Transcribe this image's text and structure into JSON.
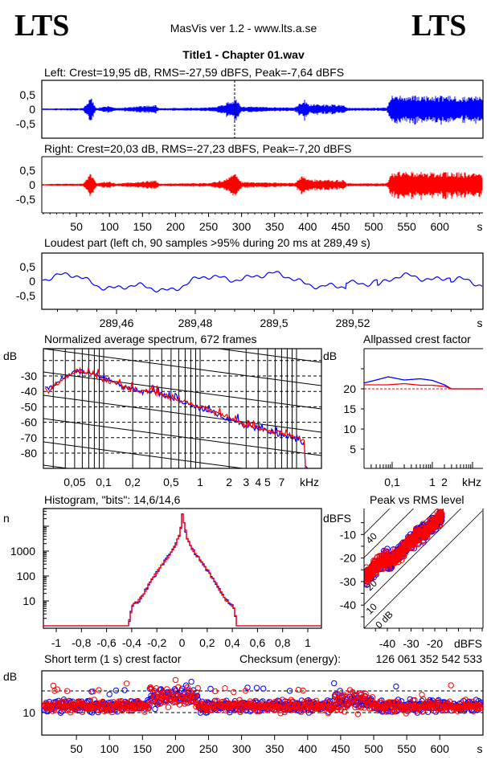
{
  "header": {
    "logo_left": "LTS",
    "logo_right": "LTS",
    "app": "MasVis ver 1.2 - www.lts.a.se",
    "file_title": "Title1 - Chapter 01.wav"
  },
  "colors": {
    "left": "#0000ff",
    "right": "#ff0000"
  },
  "chart_data": [
    {
      "id": "left-waveform",
      "type": "line",
      "title": "Left: Crest=19,95 dB, RMS=-27,59 dBFS, Peak=-7,64 dBFS",
      "ylim": [
        -1,
        1
      ],
      "yticks": [
        "0,5",
        "0",
        "-0,5"
      ],
      "ytick_values": [
        0.5,
        0,
        -0.5
      ],
      "xlim": [
        0,
        665
      ],
      "marker_time": 289.49,
      "envelope": [
        [
          0,
          0.03
        ],
        [
          60,
          0.04
        ],
        [
          68,
          0.3
        ],
        [
          72,
          0.42
        ],
        [
          80,
          0.05
        ],
        [
          100,
          0.12
        ],
        [
          110,
          0.04
        ],
        [
          170,
          0.15
        ],
        [
          175,
          0.04
        ],
        [
          250,
          0.06
        ],
        [
          270,
          0.15
        ],
        [
          290,
          0.38
        ],
        [
          300,
          0.1
        ],
        [
          380,
          0.06
        ],
        [
          395,
          0.35
        ],
        [
          400,
          0.18
        ],
        [
          455,
          0.16
        ],
        [
          460,
          0.05
        ],
        [
          520,
          0.06
        ],
        [
          527,
          0.48
        ],
        [
          665,
          0.45
        ]
      ]
    },
    {
      "id": "right-waveform",
      "type": "line",
      "title": "Right: Crest=20,03 dB, RMS=-27,23 dBFS, Peak=-7,20 dBFS",
      "ylim": [
        -1,
        1
      ],
      "yticks": [
        "0,5",
        "0",
        "-0,5"
      ],
      "ytick_values": [
        0.5,
        0,
        -0.5
      ],
      "xlim": [
        0,
        665
      ],
      "xticks": [
        "50",
        "100",
        "150",
        "200",
        "250",
        "300",
        "350",
        "400",
        "450",
        "500",
        "550",
        "600"
      ],
      "xtick_values": [
        50,
        100,
        150,
        200,
        250,
        300,
        350,
        400,
        450,
        500,
        550,
        600
      ],
      "xunit": "s"
    },
    {
      "id": "loudest-part",
      "type": "line",
      "title": "Loudest part (left  ch, 90 samples >95% during 20 ms at 289,49 s)",
      "ylim": [
        -1,
        1
      ],
      "yticks": [
        "0,5",
        "0",
        "-0,5"
      ],
      "ytick_values": [
        0.5,
        0,
        -0.5
      ],
      "xlim": [
        289.441,
        289.5525
      ],
      "xticks": [
        "289,46",
        "289,48",
        "289,5",
        "289,52"
      ],
      "xtick_values": [
        289.46,
        289.48,
        289.5,
        289.52
      ],
      "xunit": "s"
    },
    {
      "id": "spectrum",
      "type": "line",
      "title": "Normalized average spectrum, 672 frames",
      "ylabel": "dB",
      "yticks": [
        "-30",
        "-40",
        "-50",
        "-60",
        "-70",
        "-80"
      ],
      "ytick_values": [
        -30,
        -40,
        -50,
        -60,
        -70,
        -80
      ],
      "ylim": [
        -95,
        -15
      ],
      "xscale": "log",
      "xlim_khz": [
        0.0237,
        18
      ],
      "xticks": [
        "0,05",
        "0,1",
        "0,2",
        "0,5",
        "1",
        "2",
        "3",
        "4",
        "5",
        "7"
      ],
      "xtick_values": [
        0.05,
        0.1,
        0.2,
        0.5,
        1,
        2,
        3,
        4,
        5,
        7
      ],
      "xunit": "kHz",
      "series": [
        {
          "name": "left",
          "points": [
            [
              0.024,
              -37
            ],
            [
              0.028,
              -38
            ],
            [
              0.032,
              -34
            ],
            [
              0.036,
              -33
            ],
            [
              0.042,
              -30
            ],
            [
              0.05,
              -27
            ],
            [
              0.06,
              -27
            ],
            [
              0.07,
              -28
            ],
            [
              0.08,
              -29
            ],
            [
              0.1,
              -32
            ],
            [
              0.13,
              -34
            ],
            [
              0.16,
              -37
            ],
            [
              0.2,
              -39
            ],
            [
              0.25,
              -40
            ],
            [
              0.3,
              -40
            ],
            [
              0.4,
              -42
            ],
            [
              0.5,
              -45
            ],
            [
              0.7,
              -48
            ],
            [
              1,
              -51
            ],
            [
              1.5,
              -55
            ],
            [
              2,
              -58
            ],
            [
              3,
              -62
            ],
            [
              4,
              -64
            ],
            [
              5,
              -66
            ],
            [
              7,
              -68
            ],
            [
              10,
              -72
            ],
            [
              12,
              -74
            ],
            [
              12.3,
              -88
            ]
          ]
        },
        {
          "name": "right",
          "points": [
            [
              0.024,
              -38
            ],
            [
              0.028,
              -39
            ],
            [
              0.032,
              -35
            ],
            [
              0.036,
              -33
            ],
            [
              0.042,
              -30
            ],
            [
              0.05,
              -27
            ],
            [
              0.06,
              -27
            ],
            [
              0.07,
              -28
            ],
            [
              0.08,
              -29
            ],
            [
              0.1,
              -32
            ],
            [
              0.13,
              -34
            ],
            [
              0.16,
              -37
            ],
            [
              0.2,
              -39
            ],
            [
              0.25,
              -40
            ],
            [
              0.3,
              -40
            ],
            [
              0.4,
              -42
            ],
            [
              0.5,
              -44
            ],
            [
              0.7,
              -47
            ],
            [
              1,
              -50
            ],
            [
              1.5,
              -54
            ],
            [
              2,
              -57
            ],
            [
              3,
              -62
            ],
            [
              4,
              -64
            ],
            [
              5,
              -65
            ],
            [
              7,
              -67
            ],
            [
              10,
              -70
            ],
            [
              12,
              -72
            ],
            [
              12.3,
              -90
            ]
          ]
        }
      ]
    },
    {
      "id": "allpassed-crest",
      "type": "line",
      "title": "Allpassed crest factor",
      "ylabel": "dB",
      "yticks": [
        "20",
        "15",
        "10",
        "5"
      ],
      "ytick_values": [
        20,
        15,
        10,
        5
      ],
      "ylim": [
        0,
        30
      ],
      "reference_db": 20,
      "xscale": "log",
      "xlim_khz": [
        0.021,
        20
      ],
      "xticks": [
        "0,1",
        "1",
        "2"
      ],
      "xtick_values": [
        0.1,
        1,
        2
      ],
      "xunit": "kHz",
      "series": [
        {
          "name": "left",
          "points": [
            [
              0.021,
              21.5
            ],
            [
              0.04,
              22.2
            ],
            [
              0.08,
              23
            ],
            [
              0.2,
              22.2
            ],
            [
              0.5,
              22.5
            ],
            [
              1,
              22.1
            ],
            [
              2,
              21
            ],
            [
              3,
              20
            ],
            [
              6,
              20
            ],
            [
              20,
              20
            ]
          ]
        },
        {
          "name": "right",
          "points": [
            [
              0.021,
              21
            ],
            [
              0.08,
              21
            ],
            [
              0.2,
              21.3
            ],
            [
              0.5,
              20.9
            ],
            [
              1,
              20.9
            ],
            [
              2,
              20.6
            ],
            [
              3,
              20
            ],
            [
              6,
              20
            ],
            [
              20,
              20
            ]
          ]
        }
      ]
    },
    {
      "id": "histogram",
      "type": "line",
      "title": "Histogram, \"bits\": 14,6/14,6",
      "ylabel": "n",
      "yscale": "log",
      "yticks": [
        "1000",
        "100",
        "10"
      ],
      "ytick_values": [
        1000,
        100,
        10
      ],
      "xlim": [
        -1.1,
        1.1
      ],
      "xticks": [
        "-1",
        "-0,8",
        "-0,6",
        "-0,4",
        "-0,2",
        "0",
        "0,2",
        "0,4",
        "0,6",
        "0,8",
        "1"
      ],
      "xtick_values": [
        -1,
        -0.8,
        -0.6,
        -0.4,
        -0.2,
        0,
        0.2,
        0.4,
        0.6,
        0.8,
        1
      ],
      "log10_count_profile": [
        [
          0,
          4.7
        ],
        [
          0.01,
          4.1
        ],
        [
          0.03,
          3.6
        ],
        [
          0.06,
          3.2
        ],
        [
          0.1,
          2.9
        ],
        [
          0.2,
          2.2
        ],
        [
          0.3,
          1.4
        ],
        [
          0.35,
          1.0
        ],
        [
          0.4,
          0.8
        ],
        [
          0.42,
          0.4
        ],
        [
          0.43,
          0
        ]
      ]
    },
    {
      "id": "peak-vs-rms",
      "type": "scatter",
      "title": "Peak vs RMS level",
      "ylabel": "dBFS",
      "xlabel": "dBFS",
      "yticks": [
        "-10",
        "-20",
        "-30",
        "-40"
      ],
      "ytick_values": [
        -10,
        -20,
        -30,
        -40
      ],
      "xticks": [
        "-40",
        "-30",
        "-20"
      ],
      "xtick_values": [
        -40,
        -30,
        -20
      ],
      "xlim": [
        -49.3,
        -0.3
      ],
      "ylim": [
        -49,
        -1
      ],
      "crest_lines": [
        {
          "db": 40,
          "label": "40"
        },
        {
          "db": 20,
          "label": "20"
        },
        {
          "db": 10,
          "label": "10"
        },
        {
          "db": 0,
          "label": "0 dB"
        },
        {
          "db": 30,
          "label": ""
        }
      ],
      "rms_range": [
        -49,
        -17
      ],
      "mean_crest_db": 17
    },
    {
      "id": "short-term-crest",
      "type": "scatter",
      "title": "Short term (1 s) crest factor",
      "checksum_label": "Checksum (energy):",
      "checksum": "126 061 352 542 533",
      "ylabel": "dB",
      "yticks": [
        "10"
      ],
      "ytick_values": [
        10
      ],
      "dashed_at": [
        10,
        15
      ],
      "ylim": [
        5.3,
        19.6
      ],
      "xlim": [
        0,
        665
      ],
      "xticks": [
        "50",
        "100",
        "150",
        "200",
        "250",
        "300",
        "350",
        "400",
        "450",
        "500",
        "550",
        "600"
      ],
      "xtick_values": [
        50,
        100,
        150,
        200,
        250,
        300,
        350,
        400,
        450,
        500,
        550,
        600
      ],
      "xunit": "s",
      "mean_db": 11.5
    }
  ]
}
